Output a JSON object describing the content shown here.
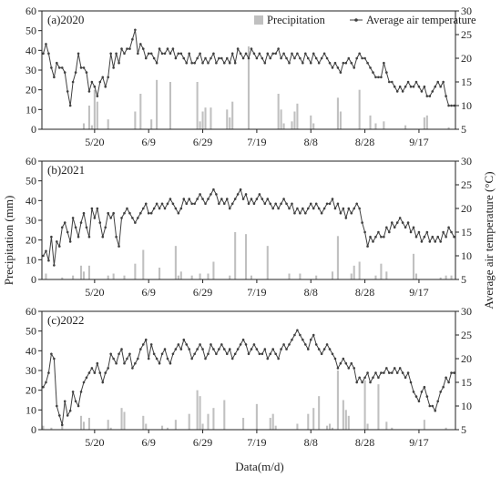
{
  "figure": {
    "y_left_label": "Precipitation (mm)",
    "y_right_label": "Average air temperature (°C)",
    "x_label": "Data(m/d)",
    "colors": {
      "bar": "#c0c0c0",
      "line": "#404040",
      "axis": "#222222"
    }
  },
  "chart_data": [
    {
      "type": "bar+line",
      "title": "(a)2020",
      "legend": {
        "placement": "top-right",
        "entries": [
          "Precipitation",
          "Average air temperature"
        ]
      },
      "x_ticks": [
        "5/20",
        "6/9",
        "6/29",
        "7/19",
        "8/8",
        "8/28",
        "9/17"
      ],
      "x_tick_days": [
        20,
        40,
        60,
        80,
        100,
        120,
        140
      ],
      "x_range_days": [
        1,
        153
      ],
      "y_left": {
        "range": [
          0,
          60
        ],
        "ticks": [
          0,
          10,
          20,
          30,
          40,
          50,
          60
        ]
      },
      "y_right": {
        "range": [
          5,
          30
        ],
        "ticks": [
          5,
          10,
          15,
          20,
          25,
          30
        ]
      },
      "precipitation": [
        {
          "day": 16,
          "value": 3
        },
        {
          "day": 18,
          "value": 12
        },
        {
          "day": 19,
          "value": 2
        },
        {
          "day": 20,
          "value": 20
        },
        {
          "day": 21,
          "value": 14
        },
        {
          "day": 25,
          "value": 5
        },
        {
          "day": 35,
          "value": 9
        },
        {
          "day": 37,
          "value": 18
        },
        {
          "day": 41,
          "value": 5
        },
        {
          "day": 43,
          "value": 25
        },
        {
          "day": 48,
          "value": 24
        },
        {
          "day": 58,
          "value": 24
        },
        {
          "day": 59,
          "value": 4
        },
        {
          "day": 60,
          "value": 9
        },
        {
          "day": 61,
          "value": 11
        },
        {
          "day": 63,
          "value": 11
        },
        {
          "day": 69,
          "value": 10
        },
        {
          "day": 70,
          "value": 6
        },
        {
          "day": 71,
          "value": 14
        },
        {
          "day": 77,
          "value": 42
        },
        {
          "day": 88,
          "value": 18
        },
        {
          "day": 89,
          "value": 10
        },
        {
          "day": 90,
          "value": 3
        },
        {
          "day": 93,
          "value": 4
        },
        {
          "day": 94,
          "value": 9
        },
        {
          "day": 95,
          "value": 13
        },
        {
          "day": 100,
          "value": 7
        },
        {
          "day": 101,
          "value": 3
        },
        {
          "day": 110,
          "value": 16
        },
        {
          "day": 111,
          "value": 9
        },
        {
          "day": 118,
          "value": 20
        },
        {
          "day": 122,
          "value": 7
        },
        {
          "day": 124,
          "value": 3
        },
        {
          "day": 127,
          "value": 4
        },
        {
          "day": 135,
          "value": 2
        },
        {
          "day": 142,
          "value": 6
        },
        {
          "day": 143,
          "value": 7
        },
        {
          "day": 151,
          "value": 1
        }
      ],
      "temperature": [
        21,
        23,
        21,
        18,
        16,
        19,
        18,
        18,
        17,
        13,
        10,
        15,
        17,
        21,
        18,
        18,
        17,
        13,
        15,
        14,
        12,
        15,
        16,
        14,
        16,
        21,
        18,
        21,
        19,
        22,
        21,
        22,
        22,
        24,
        26,
        21,
        23,
        22,
        20,
        21,
        21,
        20,
        19,
        22,
        21,
        21,
        22,
        21,
        22,
        20,
        21,
        21,
        20,
        19,
        21,
        19,
        19,
        20,
        21,
        19,
        20,
        19,
        20,
        21,
        19,
        20,
        20,
        19,
        20,
        19,
        21,
        19,
        22,
        21,
        20,
        21,
        20,
        22,
        21,
        20,
        21,
        20,
        19,
        21,
        20,
        21,
        21,
        22,
        20,
        21,
        20,
        19,
        21,
        20,
        21,
        20,
        19,
        21,
        20,
        19,
        21,
        20,
        19,
        20,
        21,
        20,
        19,
        18,
        19,
        18,
        17,
        19,
        19,
        20,
        19,
        18,
        20,
        21,
        20,
        20,
        19,
        18,
        17,
        16,
        16,
        16,
        19,
        17,
        15,
        15,
        14,
        13,
        14,
        13,
        14,
        15,
        14,
        14,
        15,
        14,
        13,
        14,
        12,
        12,
        13,
        14,
        15,
        14,
        15,
        12,
        10,
        10,
        10
      ]
    },
    {
      "type": "bar+line",
      "title": "(b)2021",
      "x_ticks": [
        "5/20",
        "6/9",
        "6/29",
        "7/19",
        "8/8",
        "8/28",
        "9/17"
      ],
      "x_tick_days": [
        20,
        40,
        60,
        80,
        100,
        120,
        140
      ],
      "x_range_days": [
        1,
        153
      ],
      "y_left": {
        "range": [
          0,
          60
        ],
        "ticks": [
          0,
          10,
          20,
          30,
          40,
          50,
          60
        ]
      },
      "y_right": {
        "range": [
          5,
          30
        ],
        "ticks": [
          5,
          10,
          15,
          20,
          25,
          30
        ]
      },
      "precipitation": [
        {
          "day": 2,
          "value": 3
        },
        {
          "day": 8,
          "value": 1
        },
        {
          "day": 12,
          "value": 2
        },
        {
          "day": 15,
          "value": 7
        },
        {
          "day": 16,
          "value": 4
        },
        {
          "day": 18,
          "value": 7
        },
        {
          "day": 25,
          "value": 2
        },
        {
          "day": 27,
          "value": 3
        },
        {
          "day": 31,
          "value": 2
        },
        {
          "day": 35,
          "value": 8
        },
        {
          "day": 38,
          "value": 15
        },
        {
          "day": 44,
          "value": 6
        },
        {
          "day": 50,
          "value": 17
        },
        {
          "day": 51,
          "value": 2
        },
        {
          "day": 52,
          "value": 4
        },
        {
          "day": 56,
          "value": 2
        },
        {
          "day": 59,
          "value": 3
        },
        {
          "day": 62,
          "value": 3
        },
        {
          "day": 64,
          "value": 9
        },
        {
          "day": 70,
          "value": 2
        },
        {
          "day": 72,
          "value": 24
        },
        {
          "day": 76,
          "value": 23
        },
        {
          "day": 78,
          "value": 2
        },
        {
          "day": 84,
          "value": 17
        },
        {
          "day": 92,
          "value": 3
        },
        {
          "day": 96,
          "value": 3
        },
        {
          "day": 102,
          "value": 2
        },
        {
          "day": 108,
          "value": 4
        },
        {
          "day": 110,
          "value": 22
        },
        {
          "day": 115,
          "value": 3
        },
        {
          "day": 116,
          "value": 7
        },
        {
          "day": 118,
          "value": 9
        },
        {
          "day": 124,
          "value": 2
        },
        {
          "day": 126,
          "value": 8
        },
        {
          "day": 128,
          "value": 4
        },
        {
          "day": 138,
          "value": 13
        },
        {
          "day": 139,
          "value": 3
        },
        {
          "day": 148,
          "value": 1
        },
        {
          "day": 150,
          "value": 2
        },
        {
          "day": 152,
          "value": 2
        }
      ],
      "temperature": [
        10,
        11,
        9,
        14,
        8,
        13,
        12,
        16,
        17,
        15,
        13,
        18,
        16,
        14,
        17,
        19,
        16,
        14,
        20,
        18,
        20,
        17,
        14,
        16,
        19,
        18,
        19,
        14,
        12,
        18,
        19,
        20,
        19,
        18,
        17,
        18,
        19,
        20,
        21,
        19,
        19,
        20,
        21,
        20,
        21,
        20,
        21,
        22,
        21,
        20,
        19,
        20,
        22,
        21,
        22,
        21,
        21,
        22,
        23,
        22,
        21,
        22,
        23,
        24,
        23,
        21,
        22,
        21,
        22,
        20,
        21,
        22,
        23,
        24,
        22,
        23,
        21,
        22,
        21,
        22,
        23,
        22,
        21,
        22,
        21,
        20,
        21,
        20,
        21,
        22,
        21,
        20,
        21,
        19,
        20,
        19,
        20,
        19,
        20,
        21,
        20,
        21,
        20,
        19,
        20,
        21,
        21,
        22,
        20,
        21,
        19,
        20,
        18,
        20,
        19,
        20,
        21,
        20,
        17,
        15,
        12,
        14,
        13,
        14,
        15,
        14,
        14,
        16,
        15,
        17,
        16,
        17,
        18,
        17,
        16,
        17,
        15,
        16,
        14,
        15,
        13,
        14,
        15,
        13,
        14,
        13,
        14,
        13,
        15,
        14,
        16,
        15,
        14
      ]
    },
    {
      "type": "bar+line",
      "title": "(c)2022",
      "x_ticks": [
        "5/20",
        "6/9",
        "6/29",
        "7/19",
        "8/8",
        "8/28",
        "9/17"
      ],
      "x_tick_days": [
        20,
        40,
        60,
        80,
        100,
        120,
        140
      ],
      "x_range_days": [
        1,
        153
      ],
      "y_left": {
        "range": [
          0,
          60
        ],
        "ticks": [
          0,
          10,
          20,
          30,
          40,
          50,
          60
        ]
      },
      "y_right": {
        "range": [
          5,
          30
        ],
        "ticks": [
          5,
          10,
          15,
          20,
          25,
          30
        ]
      },
      "precipitation": [
        {
          "day": 1,
          "value": 2
        },
        {
          "day": 4,
          "value": 1
        },
        {
          "day": 8,
          "value": 3
        },
        {
          "day": 15,
          "value": 7
        },
        {
          "day": 16,
          "value": 4
        },
        {
          "day": 18,
          "value": 6
        },
        {
          "day": 25,
          "value": 5
        },
        {
          "day": 26,
          "value": 1
        },
        {
          "day": 30,
          "value": 11
        },
        {
          "day": 31,
          "value": 9
        },
        {
          "day": 38,
          "value": 7
        },
        {
          "day": 39,
          "value": 3
        },
        {
          "day": 45,
          "value": 2
        },
        {
          "day": 47,
          "value": 1
        },
        {
          "day": 50,
          "value": 5
        },
        {
          "day": 55,
          "value": 8
        },
        {
          "day": 58,
          "value": 20
        },
        {
          "day": 59,
          "value": 17
        },
        {
          "day": 60,
          "value": 3
        },
        {
          "day": 62,
          "value": 8
        },
        {
          "day": 64,
          "value": 11
        },
        {
          "day": 68,
          "value": 15
        },
        {
          "day": 75,
          "value": 6
        },
        {
          "day": 80,
          "value": 13
        },
        {
          "day": 85,
          "value": 6
        },
        {
          "day": 86,
          "value": 8
        },
        {
          "day": 87,
          "value": 2
        },
        {
          "day": 95,
          "value": 3
        },
        {
          "day": 99,
          "value": 8
        },
        {
          "day": 101,
          "value": 11
        },
        {
          "day": 103,
          "value": 17
        },
        {
          "day": 106,
          "value": 2
        },
        {
          "day": 107,
          "value": 3
        },
        {
          "day": 108,
          "value": 1
        },
        {
          "day": 110,
          "value": 30
        },
        {
          "day": 112,
          "value": 15
        },
        {
          "day": 113,
          "value": 10
        },
        {
          "day": 114,
          "value": 7
        },
        {
          "day": 120,
          "value": 25
        },
        {
          "day": 121,
          "value": 3
        },
        {
          "day": 125,
          "value": 23
        },
        {
          "day": 128,
          "value": 4
        },
        {
          "day": 130,
          "value": 1
        },
        {
          "day": 142,
          "value": 5
        },
        {
          "day": 150,
          "value": 1
        }
      ],
      "temperature": [
        14,
        15,
        17,
        21,
        20,
        10,
        8,
        6,
        11,
        8,
        9,
        13,
        11,
        10,
        13,
        15,
        16,
        17,
        18,
        17,
        19,
        17,
        15,
        17,
        18,
        21,
        20,
        19,
        21,
        22,
        19,
        20,
        21,
        18,
        19,
        20,
        22,
        23,
        24,
        20,
        23,
        21,
        20,
        19,
        21,
        22,
        20,
        19,
        21,
        22,
        23,
        22,
        24,
        23,
        22,
        20,
        21,
        22,
        23,
        22,
        20,
        21,
        23,
        22,
        21,
        22,
        23,
        22,
        21,
        22,
        20,
        21,
        22,
        23,
        24,
        23,
        21,
        22,
        23,
        22,
        21,
        21,
        22,
        20,
        21,
        22,
        21,
        20,
        22,
        23,
        22,
        23,
        24,
        25,
        26,
        25,
        24,
        23,
        22,
        24,
        25,
        23,
        22,
        21,
        22,
        23,
        22,
        21,
        20,
        18,
        19,
        20,
        19,
        18,
        19,
        18,
        15,
        16,
        15,
        16,
        17,
        15,
        16,
        17,
        16,
        17,
        17,
        18,
        17,
        17,
        18,
        17,
        18,
        17,
        16,
        17,
        15,
        13,
        12,
        11,
        13,
        14,
        12,
        10,
        10,
        9,
        11,
        13,
        14,
        16,
        15,
        17,
        17
      ]
    }
  ]
}
